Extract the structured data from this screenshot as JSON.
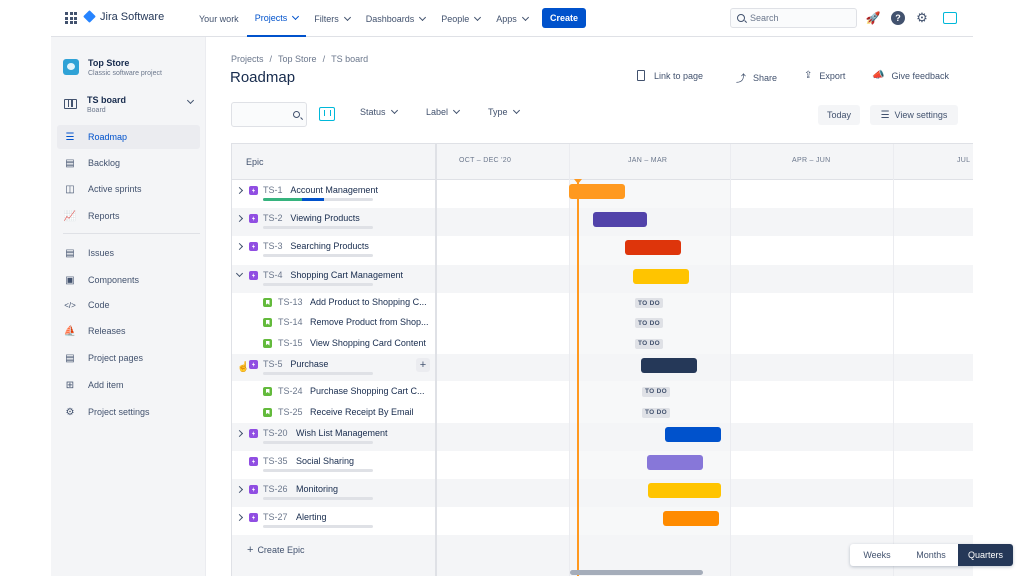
{
  "topnav": {
    "app_name": "Jira Software",
    "items": [
      {
        "label": "Your work",
        "dropdown": false,
        "active": false
      },
      {
        "label": "Projects",
        "dropdown": true,
        "active": true
      },
      {
        "label": "Filters",
        "dropdown": true,
        "active": false
      },
      {
        "label": "Dashboards",
        "dropdown": true,
        "active": false
      },
      {
        "label": "People",
        "dropdown": true,
        "active": false
      },
      {
        "label": "Apps",
        "dropdown": true,
        "active": false
      }
    ],
    "create_label": "Create",
    "search_placeholder": "Search",
    "help_glyph": "?"
  },
  "sidebar": {
    "project_name": "Top Store",
    "project_type": "Classic software project",
    "board_name": "TS board",
    "board_type": "Board",
    "items": [
      {
        "label": "Roadmap",
        "icon": "roadmap-icon",
        "active": true
      },
      {
        "label": "Backlog",
        "icon": "backlog-icon",
        "active": false
      },
      {
        "label": "Active sprints",
        "icon": "board-columns-icon",
        "active": false
      },
      {
        "label": "Reports",
        "icon": "chart-icon",
        "active": false
      },
      {
        "label": "Issues",
        "icon": "issues-icon",
        "active": false
      },
      {
        "label": "Components",
        "icon": "components-icon",
        "active": false
      },
      {
        "label": "Code",
        "icon": "code-icon",
        "active": false
      },
      {
        "label": "Releases",
        "icon": "ship-icon",
        "active": false
      },
      {
        "label": "Project pages",
        "icon": "page-icon",
        "active": false
      },
      {
        "label": "Add item",
        "icon": "add-item-icon",
        "active": false
      },
      {
        "label": "Project settings",
        "icon": "gear-icon",
        "active": false
      }
    ]
  },
  "breadcrumbs": [
    "Projects",
    "Top Store",
    "TS board"
  ],
  "page_title": "Roadmap",
  "actions": {
    "link": "Link to page",
    "share": "Share",
    "export": "Export",
    "feedback": "Give feedback"
  },
  "filters": {
    "status": "Status",
    "label": "Label",
    "type": "Type",
    "today": "Today",
    "view_settings": "View settings"
  },
  "roadmap": {
    "epic_header": "Epic",
    "quarters": [
      "OCT – DEC '20",
      "JAN – MAR",
      "APR – JUN",
      "JUL"
    ],
    "todo_label": "TO DO",
    "create_epic": "Create Epic",
    "rows": [
      {
        "kind": "epic",
        "expander": "right",
        "key": "TS-1",
        "title": "Account Management",
        "progress_done": 0.35,
        "progress_inprogress": 0.2,
        "bar_color": "#ff991f"
      },
      {
        "kind": "epic",
        "expander": "right",
        "key": "TS-2",
        "title": "Viewing Products",
        "progress_done": 0,
        "progress_inprogress": 0,
        "bar_color": "#5243aa"
      },
      {
        "kind": "epic",
        "expander": "right",
        "key": "TS-3",
        "title": "Searching Products",
        "progress_done": 0,
        "progress_inprogress": 0,
        "bar_color": "#de350b"
      },
      {
        "kind": "epic",
        "expander": "down",
        "key": "TS-4",
        "title": "Shopping Cart Management",
        "progress_done": 0,
        "progress_inprogress": 0,
        "bar_color": "#ffc400"
      },
      {
        "kind": "story",
        "key": "TS-13",
        "title": "Add Product to Shopping C...",
        "status": "TO DO"
      },
      {
        "kind": "story",
        "key": "TS-14",
        "title": "Remove Product from Shop...",
        "status": "TO DO"
      },
      {
        "kind": "story",
        "key": "TS-15",
        "title": "View Shopping Card Content",
        "status": "TO DO"
      },
      {
        "kind": "epic",
        "expander": "down",
        "key": "TS-5",
        "title": "Purchase",
        "progress_done": 0,
        "progress_inprogress": 0,
        "bar_color": "#253858"
      },
      {
        "kind": "story",
        "key": "TS-24",
        "title": "Purchase Shopping Cart C...",
        "status": "TO DO"
      },
      {
        "kind": "story",
        "key": "TS-25",
        "title": "Receive Receipt By Email",
        "status": "TO DO"
      },
      {
        "kind": "epic",
        "expander": "right",
        "key": "TS-20",
        "title": "Wish List Management",
        "progress_done": 0,
        "progress_inprogress": 0,
        "bar_color": "#0052cc"
      },
      {
        "kind": "epic",
        "expander": "none",
        "key": "TS-35",
        "title": "Social Sharing",
        "progress_done": 0,
        "progress_inprogress": 0,
        "bar_color": "#8777d9"
      },
      {
        "kind": "epic",
        "expander": "right",
        "key": "TS-26",
        "title": "Monitoring",
        "progress_done": 0,
        "progress_inprogress": 0,
        "bar_color": "#ffc400"
      },
      {
        "kind": "epic",
        "expander": "right",
        "key": "TS-27",
        "title": "Alerting",
        "progress_done": 0,
        "progress_inprogress": 0,
        "bar_color": "#ff8b00"
      }
    ]
  },
  "zoom": [
    "Weeks",
    "Months",
    "Quarters"
  ],
  "zoom_selected": "Quarters",
  "colors": {
    "brand": "#0052cc",
    "today_marker": "#ff991f"
  }
}
